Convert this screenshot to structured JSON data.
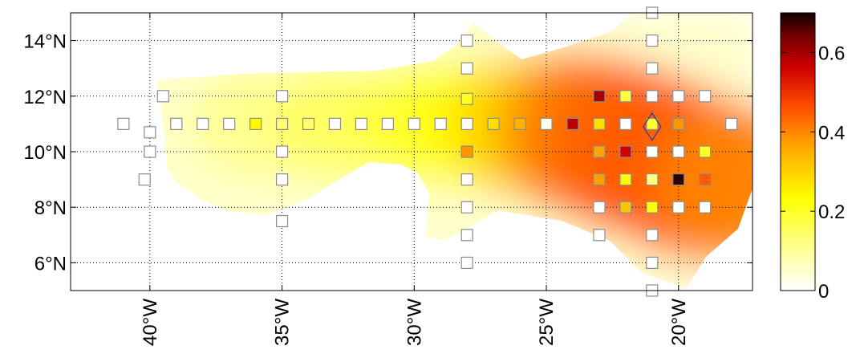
{
  "chart_data": {
    "type": "heatmap",
    "xlim": [
      -43,
      -17.2
    ],
    "ylim": [
      5,
      15
    ],
    "x_ticks": [
      {
        "value": -40,
        "label": "40°W"
      },
      {
        "value": -35,
        "label": "35°W"
      },
      {
        "value": -30,
        "label": "30°W"
      },
      {
        "value": -25,
        "label": "25°W"
      },
      {
        "value": -20,
        "label": "20°W"
      }
    ],
    "y_ticks": [
      {
        "value": 6,
        "label": "6°N"
      },
      {
        "value": 8,
        "label": "8°N"
      },
      {
        "value": 10,
        "label": "10°N"
      },
      {
        "value": 12,
        "label": "12°N"
      },
      {
        "value": 14,
        "label": "14°N"
      }
    ],
    "grid": true,
    "colorbar": {
      "range": [
        0,
        0.7
      ],
      "ticks": [
        {
          "value": 0,
          "label": "0"
        },
        {
          "value": 0.2,
          "label": "0.2"
        },
        {
          "value": 0.4,
          "label": "0.4"
        },
        {
          "value": 0.6,
          "label": "0.6"
        }
      ],
      "colormap": "hot (reversed)",
      "placement": "right"
    },
    "surface_ridge": [
      [
        -38.5,
        11.0,
        0.06
      ],
      [
        -36.0,
        11.0,
        0.12
      ],
      [
        -33.0,
        11.0,
        0.16
      ],
      [
        -30.0,
        11.0,
        0.19
      ],
      [
        -28.0,
        11.0,
        0.23
      ],
      [
        -26.0,
        10.9,
        0.3
      ],
      [
        -24.0,
        10.7,
        0.4
      ],
      [
        -22.5,
        10.3,
        0.44
      ],
      [
        -21.0,
        9.8,
        0.45
      ],
      [
        -19.5,
        9.2,
        0.45
      ],
      [
        -18.0,
        8.8,
        0.4
      ]
    ],
    "stations": [
      {
        "lon": -41.0,
        "lat": 11.0,
        "value": null
      },
      {
        "lon": -40.0,
        "lat": 10.7,
        "value": null
      },
      {
        "lon": -40.0,
        "lat": 10.0,
        "value": null
      },
      {
        "lon": -40.2,
        "lat": 9.0,
        "value": null
      },
      {
        "lon": -39.5,
        "lat": 12.0,
        "value": null
      },
      {
        "lon": -39.0,
        "lat": 11.0,
        "value": null
      },
      {
        "lon": -38.0,
        "lat": 11.0,
        "value": null
      },
      {
        "lon": -37.0,
        "lat": 11.0,
        "value": null
      },
      {
        "lon": -36.0,
        "lat": 11.0,
        "value": 0.24
      },
      {
        "lon": -35.0,
        "lat": 11.0,
        "value": 0.14
      },
      {
        "lon": -35.0,
        "lat": 12.0,
        "value": null
      },
      {
        "lon": -35.0,
        "lat": 10.0,
        "value": null
      },
      {
        "lon": -35.0,
        "lat": 9.0,
        "value": null
      },
      {
        "lon": -35.0,
        "lat": 7.5,
        "value": null
      },
      {
        "lon": -34.0,
        "lat": 11.0,
        "value": 0.14
      },
      {
        "lon": -33.0,
        "lat": 11.0,
        "value": null
      },
      {
        "lon": -32.0,
        "lat": 11.0,
        "value": null
      },
      {
        "lon": -31.0,
        "lat": 11.0,
        "value": null
      },
      {
        "lon": -30.0,
        "lat": 11.0,
        "value": null
      },
      {
        "lon": -29.0,
        "lat": 11.0,
        "value": null
      },
      {
        "lon": -28.0,
        "lat": 14.0,
        "value": null
      },
      {
        "lon": -28.0,
        "lat": 13.0,
        "value": null
      },
      {
        "lon": -28.0,
        "lat": 11.9,
        "value": 0.2
      },
      {
        "lon": -28.0,
        "lat": 11.0,
        "value": null
      },
      {
        "lon": -28.0,
        "lat": 10.0,
        "value": 0.38
      },
      {
        "lon": -28.0,
        "lat": 9.0,
        "value": null
      },
      {
        "lon": -28.0,
        "lat": 8.0,
        "value": null
      },
      {
        "lon": -28.0,
        "lat": 7.0,
        "value": null
      },
      {
        "lon": -28.0,
        "lat": 6.0,
        "value": null
      },
      {
        "lon": -27.0,
        "lat": 11.0,
        "value": 0.28
      },
      {
        "lon": -26.0,
        "lat": 11.0,
        "value": 0.35
      },
      {
        "lon": -25.0,
        "lat": 11.0,
        "value": 0.02
      },
      {
        "lon": -24.0,
        "lat": 11.0,
        "value": 0.58
      },
      {
        "lon": -23.0,
        "lat": 12.0,
        "value": 0.6
      },
      {
        "lon": -23.0,
        "lat": 11.0,
        "value": 0.28
      },
      {
        "lon": -23.0,
        "lat": 10.0,
        "value": 0.36
      },
      {
        "lon": -23.0,
        "lat": 9.0,
        "value": 0.37
      },
      {
        "lon": -23.0,
        "lat": 8.0,
        "value": null
      },
      {
        "lon": -23.0,
        "lat": 7.0,
        "value": null
      },
      {
        "lon": -22.0,
        "lat": 12.0,
        "value": 0.18
      },
      {
        "lon": -22.0,
        "lat": 11.0,
        "value": null
      },
      {
        "lon": -22.0,
        "lat": 10.0,
        "value": 0.56
      },
      {
        "lon": -22.0,
        "lat": 9.0,
        "value": 0.24
      },
      {
        "lon": -22.0,
        "lat": 8.0,
        "value": 0.32
      },
      {
        "lon": -21.0,
        "lat": 15.0,
        "value": null
      },
      {
        "lon": -21.0,
        "lat": 14.0,
        "value": null
      },
      {
        "lon": -21.0,
        "lat": 13.0,
        "value": null
      },
      {
        "lon": -21.0,
        "lat": 12.0,
        "value": null
      },
      {
        "lon": -21.0,
        "lat": 11.0,
        "value": 0.19
      },
      {
        "lon": -21.0,
        "lat": 10.0,
        "value": null
      },
      {
        "lon": -21.0,
        "lat": 9.0,
        "value": 0.12
      },
      {
        "lon": -21.0,
        "lat": 8.0,
        "value": 0.22
      },
      {
        "lon": -21.0,
        "lat": 7.0,
        "value": null
      },
      {
        "lon": -21.0,
        "lat": 6.0,
        "value": null
      },
      {
        "lon": -21.0,
        "lat": 5.0,
        "value": null
      },
      {
        "lon": -20.0,
        "lat": 12.0,
        "value": null
      },
      {
        "lon": -20.0,
        "lat": 11.0,
        "value": 0.38
      },
      {
        "lon": -20.0,
        "lat": 10.0,
        "value": null
      },
      {
        "lon": -20.0,
        "lat": 9.0,
        "value": 0.68
      },
      {
        "lon": -20.0,
        "lat": 8.0,
        "value": null
      },
      {
        "lon": -19.0,
        "lat": 12.0,
        "value": null
      },
      {
        "lon": -19.0,
        "lat": 10.0,
        "value": 0.2
      },
      {
        "lon": -19.0,
        "lat": 9.0,
        "value": 0.45
      },
      {
        "lon": -19.0,
        "lat": 8.0,
        "value": null
      },
      {
        "lon": -18.0,
        "lat": 11.0,
        "value": null
      }
    ],
    "marker": {
      "shape": "diamond",
      "lon": -21.0,
      "lat": 10.9,
      "color": "#3a3aa0"
    },
    "station_outline_color": "#8c8c8c",
    "empty_station_fill": "#ffffff"
  }
}
